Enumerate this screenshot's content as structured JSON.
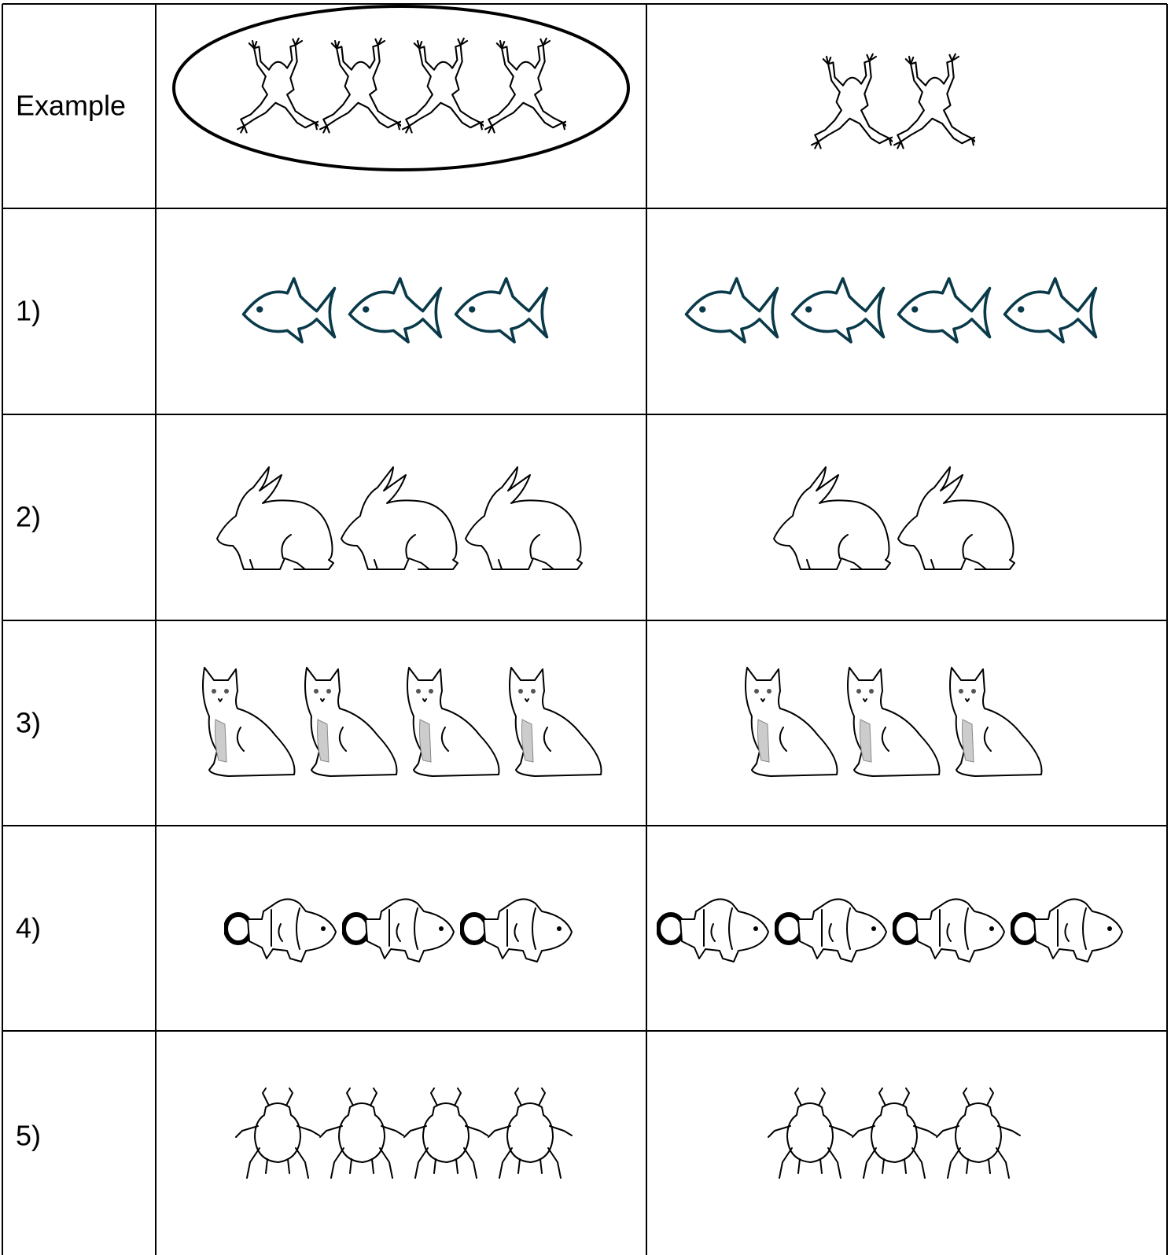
{
  "table": {
    "rows": [
      {
        "label": "Example"
      },
      {
        "label": "1)"
      },
      {
        "label": "2)"
      },
      {
        "label": "3)"
      },
      {
        "label": "4)"
      },
      {
        "label": "5)"
      }
    ]
  }
}
